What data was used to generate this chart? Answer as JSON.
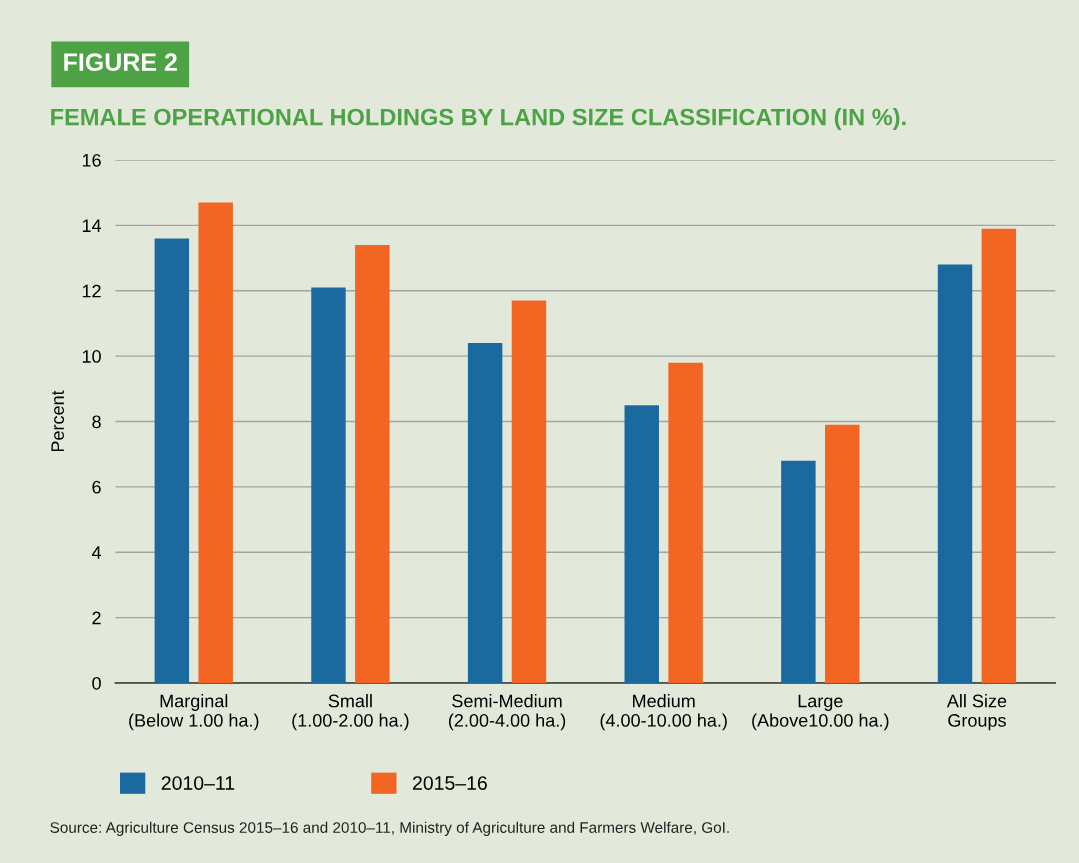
{
  "chart_data": {
    "type": "bar",
    "title": "FEMALE OPERATIONAL HOLDINGS BY LAND SIZE CLASSIFICATION (IN %).",
    "ylabel": "Percent",
    "categories": [
      "Marginal\n(Below 1.00 ha.)",
      "Small\n(1.00-2.00 ha.)",
      "Semi-Medium\n(2.00-4.00 ha.)",
      "Medium\n(4.00-10.00 ha.)",
      "Large\n(Above10.00 ha.)",
      "All Size\nGroups"
    ],
    "series": [
      {
        "name": "2010–11",
        "color": "#1a6aa0",
        "values": [
          13.6,
          12.1,
          10.4,
          8.5,
          6.8,
          12.8
        ]
      },
      {
        "name": "2015–16",
        "color": "#f26522",
        "values": [
          14.7,
          13.4,
          11.7,
          9.8,
          7.9,
          13.9
        ]
      }
    ],
    "ylim": [
      0,
      16
    ],
    "yticks": [
      0,
      2,
      4,
      6,
      8,
      10,
      12,
      14,
      16
    ],
    "grid": "y",
    "legend": "bottom left",
    "annotations": [
      "FIGURE 2",
      "Source: Agriculture Census 2015–16 and 2010–11, Ministry of Agriculture and Farmers Welfare, GoI."
    ]
  }
}
